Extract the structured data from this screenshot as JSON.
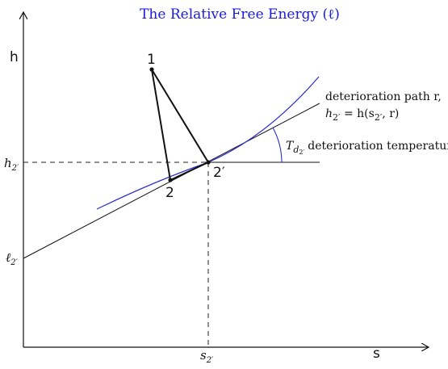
{
  "title": "The Relative Free Energy (ℓ)",
  "axes": {
    "x_label": "s",
    "y_label": "h",
    "h2_tick": "h",
    "h2_tick_sub": "2′",
    "l2_tick": "ℓ",
    "l2_tick_sub": "2′",
    "s2_tick": "s",
    "s2_tick_sub": "2′"
  },
  "points": {
    "p1": "1",
    "p2": "2",
    "p2prime": "2′"
  },
  "annotations": {
    "path_line1": "deterioration path r,",
    "path_line2_a": "h",
    "path_line2_sub": "2′",
    "path_line2_b": " = h(s",
    "path_line2_sub2": "2′",
    "path_line2_c": ", r)",
    "temp_symbol": "T",
    "temp_sub": "d",
    "temp_subsub": "2′",
    "temp_text": "deterioration temperature"
  },
  "colors": {
    "tangent_curve": "#2b2bd0",
    "title": "#1a1adb",
    "lines": "#111111"
  }
}
